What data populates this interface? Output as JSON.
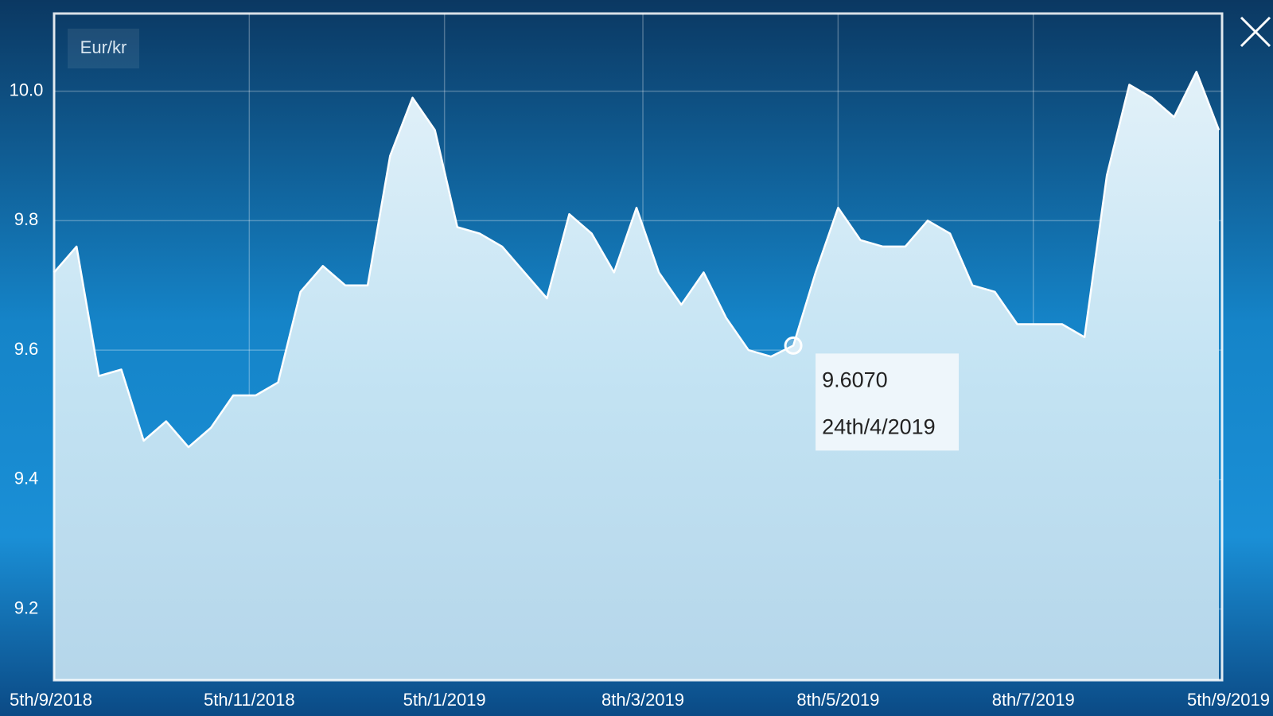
{
  "chart_data": {
    "type": "area",
    "series": [
      {
        "name": "Eur/kr",
        "color": "#ffffff",
        "x": [
          "2018-09-05",
          "2018-09-12",
          "2018-09-19",
          "2018-09-26",
          "2018-10-03",
          "2018-10-10",
          "2018-10-17",
          "2018-10-24",
          "2018-10-31",
          "2018-11-07",
          "2018-11-14",
          "2018-11-21",
          "2018-11-28",
          "2018-12-05",
          "2018-12-12",
          "2018-12-19",
          "2018-12-26",
          "2019-01-02",
          "2019-01-09",
          "2019-01-16",
          "2019-01-23",
          "2019-01-30",
          "2019-02-06",
          "2019-02-13",
          "2019-02-20",
          "2019-02-27",
          "2019-03-06",
          "2019-03-13",
          "2019-03-20",
          "2019-03-27",
          "2019-04-03",
          "2019-04-10",
          "2019-04-17",
          "2019-04-24",
          "2019-05-01",
          "2019-05-08",
          "2019-05-15",
          "2019-05-22",
          "2019-05-29",
          "2019-06-05",
          "2019-06-12",
          "2019-06-19",
          "2019-06-26",
          "2019-07-03",
          "2019-07-10",
          "2019-07-17",
          "2019-07-24",
          "2019-07-31",
          "2019-08-07",
          "2019-08-14",
          "2019-08-21",
          "2019-08-28",
          "2019-09-04"
        ],
        "values": [
          9.72,
          9.76,
          9.56,
          9.57,
          9.46,
          9.49,
          9.45,
          9.48,
          9.53,
          9.53,
          9.55,
          9.69,
          9.73,
          9.7,
          9.7,
          9.9,
          9.99,
          9.94,
          9.79,
          9.78,
          9.76,
          9.72,
          9.68,
          9.81,
          9.78,
          9.72,
          9.82,
          9.72,
          9.67,
          9.72,
          9.65,
          9.6,
          9.59,
          9.607,
          9.72,
          9.82,
          9.77,
          9.76,
          9.76,
          9.8,
          9.78,
          9.7,
          9.69,
          9.64,
          9.64,
          9.64,
          9.62,
          9.87,
          10.01,
          9.99,
          9.96,
          10.03,
          9.94
        ]
      }
    ],
    "xlim": [
      "2018-09-05",
      "2019-09-05"
    ],
    "xticks": [
      {
        "value": "2018-09-05",
        "label": "5th/9/2018"
      },
      {
        "value": "2018-11-05",
        "label": "5th/11/2018"
      },
      {
        "value": "2019-01-05",
        "label": "5th/1/2019"
      },
      {
        "value": "2019-03-08",
        "label": "8th/3/2019"
      },
      {
        "value": "2019-05-08",
        "label": "8th/5/2019"
      },
      {
        "value": "2019-07-08",
        "label": "8th/7/2019"
      },
      {
        "value": "2019-09-05",
        "label": "5th/9/2019"
      }
    ],
    "ylim": [
      9.09,
      10.12
    ],
    "yticks": [
      9.2,
      9.4,
      9.6,
      9.8,
      {
        "value": 10,
        "label": "10.0"
      }
    ],
    "grid": true,
    "tooltip": {
      "index": 33,
      "value": 9.607,
      "value_label": "9.6070",
      "date": "24th/4/2019"
    }
  }
}
